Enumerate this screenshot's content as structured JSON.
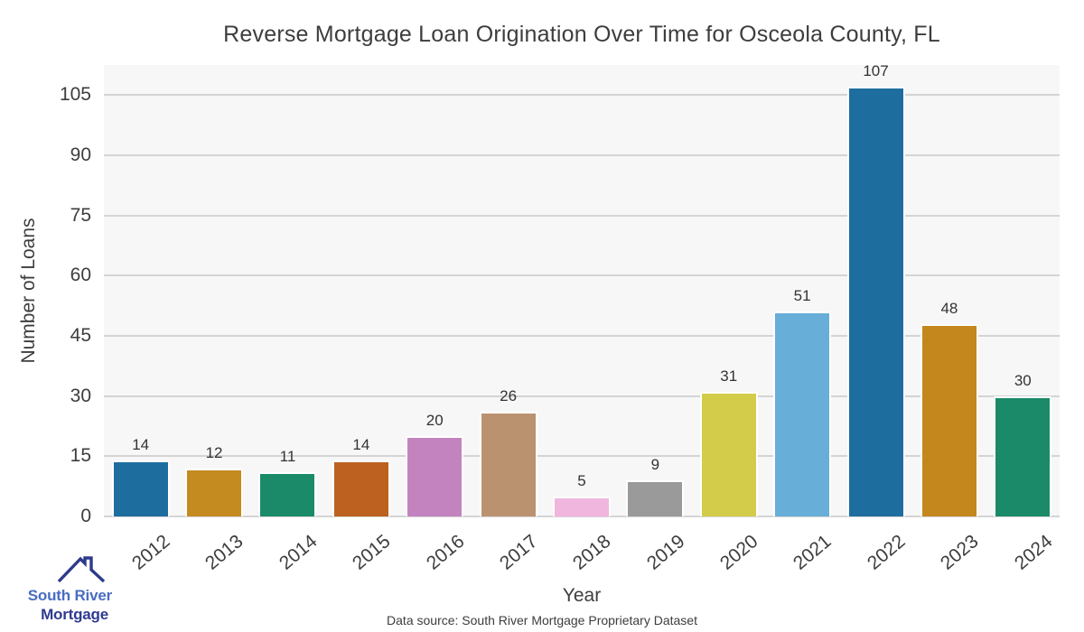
{
  "title": "Reverse Mortgage Loan Origination Over Time for Osceola County, FL",
  "chart_data": {
    "type": "bar",
    "title": "Reverse Mortgage Loan Origination Over Time for Osceola County, FL",
    "categories": [
      "2012",
      "2013",
      "2014",
      "2015",
      "2016",
      "2017",
      "2018",
      "2019",
      "2020",
      "2021",
      "2022",
      "2023",
      "2024"
    ],
    "values": [
      14,
      12,
      11,
      14,
      20,
      26,
      5,
      9,
      31,
      51,
      107,
      48,
      30
    ],
    "bar_colors": [
      "#1d6e9f",
      "#c48b21",
      "#1b8a68",
      "#bc611f",
      "#c283bf",
      "#bb9270",
      "#f0b6de",
      "#9a9a9a",
      "#d3cc4b",
      "#67aed8",
      "#1d6e9f",
      "#c4871e",
      "#1b8a68"
    ],
    "xlabel": "Year",
    "ylabel": "Number of Loans",
    "yticks": [
      0,
      15,
      30,
      45,
      60,
      75,
      90,
      105
    ],
    "ylim": [
      0,
      112.5
    ],
    "grid": "horizontal-major",
    "legend": "none",
    "value_labels": true,
    "plot_bg": "#f7f7f7",
    "gridline_color": "#d4d4d4",
    "text_color": "#3d3d3d"
  },
  "footer": {
    "data_source": "Data source: South River Mortgage Proprietary Dataset"
  },
  "logo": {
    "line1": "South River",
    "line2": "Mortgage",
    "line1_color": "#4a6dc2",
    "line2_color": "#2f3a90",
    "roof_color": "#2e3a8c",
    "roof_icon": "house-roof-with-chimney"
  }
}
